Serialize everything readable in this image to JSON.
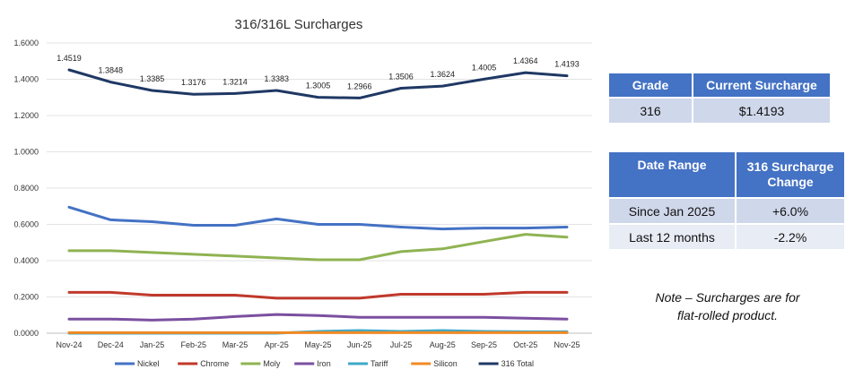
{
  "chart_data": {
    "type": "line",
    "title": "316/316L Surcharges",
    "categories": [
      "Nov-24",
      "Dec-24",
      "Jan-25",
      "Feb-25",
      "Mar-25",
      "Apr-25",
      "May-25",
      "Jun-25",
      "Jul-25",
      "Aug-25",
      "Sep-25",
      "Oct-25",
      "Nov-25"
    ],
    "ylim": [
      0,
      1.6
    ],
    "yticks": [
      "0.0000",
      "0.2000",
      "0.4000",
      "0.6000",
      "0.8000",
      "1.0000",
      "1.2000",
      "1.4000",
      "1.6000"
    ],
    "grid": true,
    "legend_position": "bottom",
    "series": [
      {
        "name": "Nickel",
        "color": "#4472c4",
        "values": [
          0.695,
          0.625,
          0.615,
          0.595,
          0.595,
          0.63,
          0.6,
          0.6,
          0.585,
          0.575,
          0.58,
          0.58,
          0.585
        ]
      },
      {
        "name": "Chrome",
        "color": "#c0392b",
        "values": [
          0.225,
          0.225,
          0.21,
          0.21,
          0.21,
          0.193,
          0.193,
          0.193,
          0.215,
          0.215,
          0.215,
          0.225,
          0.225
        ]
      },
      {
        "name": "Moly",
        "color": "#8fb352",
        "values": [
          0.455,
          0.455,
          0.445,
          0.435,
          0.425,
          0.415,
          0.405,
          0.405,
          0.45,
          0.465,
          0.505,
          0.545,
          0.53
        ]
      },
      {
        "name": "Iron",
        "color": "#7b4fa0",
        "values": [
          0.078,
          0.078,
          0.072,
          0.078,
          0.092,
          0.103,
          0.098,
          0.088,
          0.088,
          0.088,
          0.088,
          0.083,
          0.078
        ]
      },
      {
        "name": "Tariff",
        "color": "#3fa9c9",
        "values": [
          0,
          0,
          0,
          0,
          0,
          0,
          0.01,
          0.015,
          0.01,
          0.015,
          0.01,
          0.008,
          0.008
        ]
      },
      {
        "name": "Silicon",
        "color": "#f08a24",
        "values": [
          0.003,
          0.003,
          0.003,
          0.003,
          0.003,
          0.003,
          0.003,
          0.003,
          0.003,
          0.003,
          0.003,
          0.003,
          0.003
        ]
      },
      {
        "name": "316 Total",
        "color": "#1f3864",
        "values": [
          1.4519,
          1.3848,
          1.3385,
          1.3176,
          1.3214,
          1.3383,
          1.3005,
          1.2966,
          1.3506,
          1.3624,
          1.4005,
          1.4364,
          1.4193
        ],
        "labels": [
          "1.4519",
          "1.3848",
          "1.3385",
          "1.3176",
          "1.3214",
          "1.3383",
          "1.3005",
          "1.2966",
          "1.3506",
          "1.3624",
          "1.4005",
          "1.4364",
          "1.4193"
        ]
      }
    ]
  },
  "grade_table": {
    "header_grade": "Grade",
    "header_surcharge": "Current Surcharge",
    "grade": "316",
    "surcharge": "$1.4193"
  },
  "change_table": {
    "header_range": "Date Range",
    "header_change": "316 Surcharge Change",
    "rows": [
      {
        "range": "Since Jan 2025",
        "change": "+6.0%"
      },
      {
        "range": "Last 12 months",
        "change": "-2.2%"
      }
    ]
  },
  "note": {
    "line1": "Note – Surcharges are for",
    "line2": "flat-rolled product."
  }
}
